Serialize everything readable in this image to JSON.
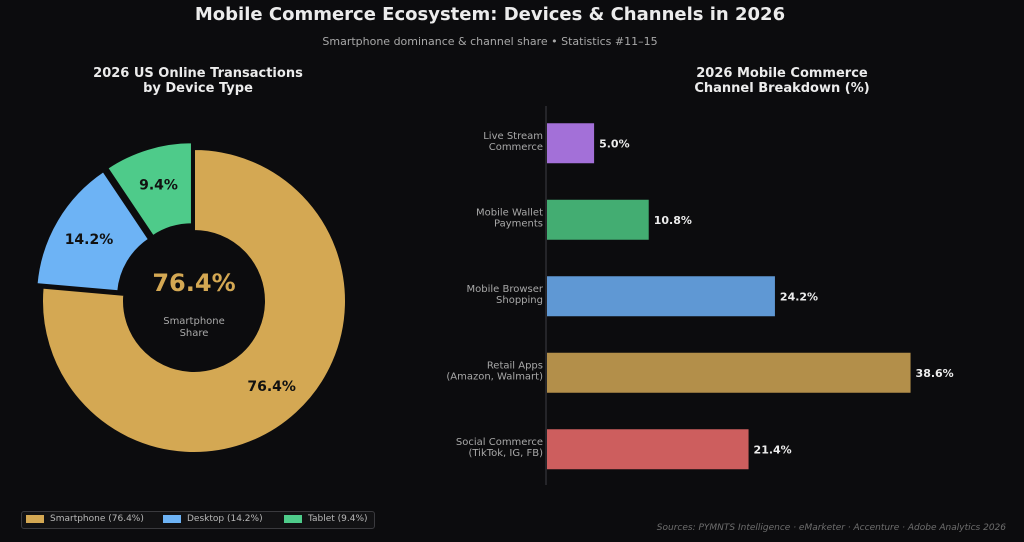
{
  "header": {
    "title": "Mobile Commerce Ecosystem: Devices & Channels in 2026",
    "subtitle": "Smartphone dominance & channel share  •  Statistics #11–15"
  },
  "chart_data": [
    {
      "type": "pie",
      "title_lines": [
        "2026 US Online Transactions",
        "by Device Type"
      ],
      "slices": [
        {
          "label": "Smartphone",
          "value": 76.4,
          "value_label": "76.4%",
          "color": "#d4a853"
        },
        {
          "label": "Desktop",
          "value": 14.2,
          "value_label": "14.2%",
          "color": "#6db3f5"
        },
        {
          "label": "Tablet",
          "value": 9.4,
          "value_label": "9.4%",
          "color": "#4ecb8a"
        }
      ],
      "center_value": "76.4%",
      "center_caption": [
        "Smartphone",
        "Share"
      ],
      "legend": {
        "placement": "bottom-left",
        "items": [
          {
            "label": "Smartphone (76.4%)",
            "color": "#d4a853"
          },
          {
            "label": "Desktop (14.2%)",
            "color": "#6db3f5"
          },
          {
            "label": "Tablet (9.4%)",
            "color": "#4ecb8a"
          }
        ]
      }
    },
    {
      "type": "bar",
      "orientation": "horizontal",
      "title_lines": [
        "2026 Mobile Commerce",
        "Channel Breakdown (%)"
      ],
      "categories": [
        [
          "Live Stream",
          "Commerce"
        ],
        [
          "Mobile Wallet",
          "Payments"
        ],
        [
          "Mobile Browser",
          "Shopping"
        ],
        [
          "Retail Apps",
          "(Amazon, Walmart)"
        ],
        [
          "Social Commerce",
          "(TikTok, IG, FB)"
        ]
      ],
      "values": [
        5.0,
        10.8,
        24.2,
        38.6,
        21.4
      ],
      "value_labels": [
        "5.0%",
        "10.8%",
        "24.2%",
        "38.6%",
        "21.4%"
      ],
      "colors": [
        "#a370d8",
        "#43ad72",
        "#5f98d4",
        "#b38f4a",
        "#cd5e5e"
      ],
      "xlim": [
        0,
        43
      ],
      "grid": false
    }
  ],
  "footer": {
    "sources": "Sources: PYMNTS Intelligence · eMarketer · Accenture · Adobe Analytics 2026"
  }
}
